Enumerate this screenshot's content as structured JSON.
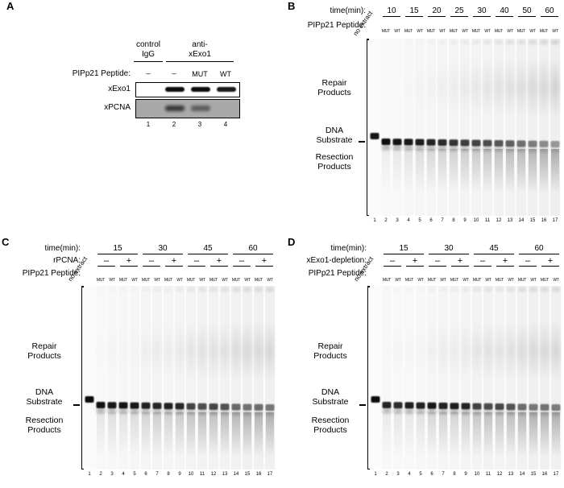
{
  "panelA": {
    "label": "A",
    "groups": [
      {
        "lines": [
          "control",
          "IgG"
        ]
      },
      {
        "lines": [
          "anti-",
          "xExo1"
        ]
      }
    ],
    "peptide_label": "PIPp21 Peptide:",
    "peptide_values": [
      "–",
      "–",
      "MUT",
      "WT"
    ],
    "blots": [
      {
        "label": "xExo1",
        "bg": "#ffffff",
        "bands": [
          0,
          0.95,
          0.95,
          0.9
        ]
      },
      {
        "label": "xPCNA",
        "bg": "#a9a9a9",
        "bands": [
          0,
          0.8,
          0.55,
          0
        ]
      }
    ],
    "lane_numbers": [
      "1",
      "2",
      "3",
      "4"
    ]
  },
  "panelB": {
    "label": "B",
    "time_label": "time(min):",
    "times": [
      "10",
      "15",
      "20",
      "25",
      "30",
      "40",
      "50",
      "60"
    ],
    "peptide_label": "PIPp21 Peptide:",
    "no_extract": "no extract",
    "pair": [
      "MUT",
      "WT"
    ],
    "side_labels": {
      "repair": [
        "Repair",
        "Products"
      ],
      "substrate": [
        "DNA",
        "Substrate"
      ],
      "resection": [
        "Resection",
        "Products"
      ]
    },
    "lane_numbers": [
      "1",
      "2",
      "3",
      "4",
      "5",
      "6",
      "7",
      "8",
      "9",
      "10",
      "11",
      "12",
      "13",
      "14",
      "15",
      "16",
      "17"
    ],
    "gel": {
      "lanes": [
        [
          0.92,
          0,
          0
        ],
        [
          0.95,
          0.1,
          0
        ],
        [
          0.92,
          0.14,
          0
        ],
        [
          0.9,
          0.18,
          0.01
        ],
        [
          0.88,
          0.22,
          0.02
        ],
        [
          0.85,
          0.25,
          0.03
        ],
        [
          0.82,
          0.28,
          0.04
        ],
        [
          0.78,
          0.3,
          0.05
        ],
        [
          0.74,
          0.34,
          0.06
        ],
        [
          0.72,
          0.36,
          0.07
        ],
        [
          0.68,
          0.4,
          0.08
        ],
        [
          0.64,
          0.42,
          0.09
        ],
        [
          0.6,
          0.46,
          0.1
        ],
        [
          0.54,
          0.48,
          0.11
        ],
        [
          0.48,
          0.52,
          0.13
        ],
        [
          0.42,
          0.55,
          0.14
        ],
        [
          0.36,
          0.58,
          0.16
        ]
      ]
    }
  },
  "panelC": {
    "label": "C",
    "time_label": "time(min):",
    "times": [
      "15",
      "30",
      "45",
      "60"
    ],
    "extra_label": "rPCNA:",
    "extra_values": [
      "–",
      "+",
      "–",
      "+",
      "–",
      "+",
      "–",
      "+"
    ],
    "peptide_label": "PIPp21 Peptide:",
    "no_extract": "no extract",
    "pair": [
      "MUT",
      "WT"
    ],
    "side_labels": {
      "repair": [
        "Repair",
        "Products"
      ],
      "substrate": [
        "DNA",
        "Substrate"
      ],
      "resection": [
        "Resection",
        "Products"
      ]
    },
    "lane_numbers": [
      "1",
      "2",
      "3",
      "4",
      "5",
      "6",
      "7",
      "8",
      "9",
      "10",
      "11",
      "12",
      "13",
      "14",
      "15",
      "16",
      "17"
    ],
    "gel": {
      "lanes": [
        [
          0.95,
          0,
          0
        ],
        [
          0.92,
          0.16,
          0.01
        ],
        [
          0.9,
          0.2,
          0.02
        ],
        [
          0.92,
          0.18,
          0.02
        ],
        [
          0.9,
          0.22,
          0.02
        ],
        [
          0.86,
          0.28,
          0.04
        ],
        [
          0.84,
          0.32,
          0.05
        ],
        [
          0.86,
          0.3,
          0.05
        ],
        [
          0.84,
          0.34,
          0.06
        ],
        [
          0.72,
          0.4,
          0.08
        ],
        [
          0.68,
          0.44,
          0.09
        ],
        [
          0.7,
          0.42,
          0.09
        ],
        [
          0.66,
          0.46,
          0.1
        ],
        [
          0.56,
          0.5,
          0.12
        ],
        [
          0.52,
          0.54,
          0.13
        ],
        [
          0.54,
          0.52,
          0.13
        ],
        [
          0.5,
          0.56,
          0.14
        ]
      ]
    }
  },
  "panelD": {
    "label": "D",
    "time_label": "time(min):",
    "times": [
      "15",
      "30",
      "45",
      "60"
    ],
    "extra_label": "xExo1-depletion:",
    "extra_values": [
      "–",
      "+",
      "–",
      "+",
      "–",
      "+",
      "–",
      "+"
    ],
    "peptide_label": "PIPp21 Peptide:",
    "no_extract": "no extract",
    "pair": [
      "MUT",
      "WT"
    ],
    "side_labels": {
      "repair": [
        "Repair",
        "Products"
      ],
      "substrate": [
        "DNA",
        "Substrate"
      ],
      "resection": [
        "Resection",
        "Products"
      ]
    },
    "lane_numbers": [
      "1",
      "2",
      "3",
      "4",
      "5",
      "6",
      "7",
      "8",
      "9",
      "10",
      "11",
      "12",
      "13",
      "14",
      "15",
      "16",
      "17"
    ],
    "gel": {
      "lanes": [
        [
          0.95,
          0,
          0
        ],
        [
          0.85,
          0.12,
          0.01
        ],
        [
          0.82,
          0.16,
          0.02
        ],
        [
          0.88,
          0.14,
          0.02
        ],
        [
          0.86,
          0.18,
          0.02
        ],
        [
          0.9,
          0.26,
          0.04
        ],
        [
          0.86,
          0.3,
          0.05
        ],
        [
          0.88,
          0.28,
          0.05
        ],
        [
          0.85,
          0.32,
          0.06
        ],
        [
          0.72,
          0.38,
          0.08
        ],
        [
          0.68,
          0.42,
          0.09
        ],
        [
          0.7,
          0.4,
          0.09
        ],
        [
          0.66,
          0.44,
          0.1
        ],
        [
          0.55,
          0.5,
          0.12
        ],
        [
          0.5,
          0.54,
          0.13
        ],
        [
          0.52,
          0.52,
          0.13
        ],
        [
          0.48,
          0.56,
          0.14
        ]
      ]
    }
  }
}
